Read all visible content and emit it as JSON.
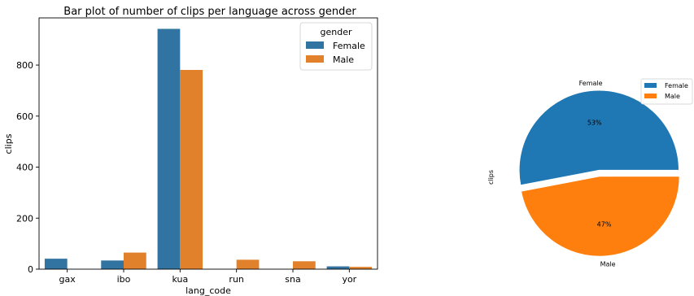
{
  "chart_data": [
    {
      "type": "bar",
      "title": "Bar plot of number of clips per language across gender",
      "xlabel": "lang_code",
      "ylabel": "clips",
      "categories": [
        "gax",
        "ibo",
        "kua",
        "run",
        "sna",
        "yor"
      ],
      "ylim": [
        0,
        985
      ],
      "yticks": [
        0,
        200,
        400,
        600,
        800
      ],
      "grid": false,
      "legend": {
        "title": "gender",
        "placement": "top-right"
      },
      "series": [
        {
          "name": "Female",
          "color": "#3274a1",
          "values": [
            41,
            34,
            942,
            0,
            0,
            11
          ]
        },
        {
          "name": "Male",
          "color": "#e1812c",
          "values": [
            0,
            65,
            781,
            37,
            31,
            9
          ]
        }
      ]
    },
    {
      "type": "pie",
      "ylabel": "clips",
      "legend": {
        "placement": "top-right"
      },
      "slices": [
        {
          "name": "Female",
          "value": 53,
          "pct_label": "53%",
          "color": "#1f77b4",
          "exploded": true
        },
        {
          "name": "Male",
          "value": 47,
          "pct_label": "47%",
          "color": "#ff7f0e",
          "exploded": false
        }
      ]
    }
  ]
}
